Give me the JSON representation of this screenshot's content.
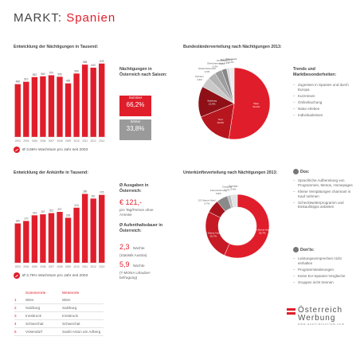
{
  "header": {
    "title_prefix": "MARKT:",
    "title_country": "Spanien"
  },
  "overnight": {
    "heading": "Entwicklung der Nächtigungen in Tausend:",
    "growth": "Ø 3,66% Wachstum pro Jahr seit 2003",
    "season_heading": "Nächtigungen in Österreich nach Saison:",
    "summer_label": "Sommer",
    "summer_value": "66,2%",
    "winter_label": "Winter",
    "winter_value": "33,8%",
    "summer_color": "#e01e2b",
    "winter_color": "#9a9a9a"
  },
  "arrivals": {
    "heading": "Entwicklung der Ankünfte in Tausend:",
    "growth": "Ø 3,75% Wachstum pro Jahr seit 2003"
  },
  "spending": {
    "heading": "Ø Ausgaben in Österreich:",
    "value": "€ 121,-",
    "note": "pro Tag/Person ohne Anreise"
  },
  "stay": {
    "heading": "Ø Aufenthaltsdauer in Österreich:",
    "value1": "2,3",
    "unit1": "Nächte",
    "source1": "(Statistik Austria)",
    "value2": "5,9",
    "unit2": "Nächte",
    "source2": "(T-MONA Urlauber-befragung)"
  },
  "regions": {
    "heading": "Bundesländerverteilung nach Nächtigungen 2013:"
  },
  "accommodation": {
    "heading": "Unterkünfteverteilung nach Nächtigungen 2013:"
  },
  "trends": {
    "heading": "Trends und Marktbesonderheiten:",
    "items": [
      "Zugreisen in Spanien und durch Europa",
      "Kurzreisen",
      "Onlinebuchung",
      "Natur erleben",
      "Individualreisen"
    ]
  },
  "dos": {
    "heading": "Dos:",
    "items": [
      "Sprachliche Aufbereitung von Programmen, Menüs, Homepages",
      "Kleine Verspätungen charmant in Kauf nehmen",
      "Schecktwetterprogramm und Einkaufstipps anbieten"
    ]
  },
  "donts": {
    "heading": "Don'ts:",
    "items": [
      "Leistungsversprechen nicht einhalten",
      "Programmänderungen",
      "Keine EU-Spanien-Vergleiche",
      "Gruppen nicht trennen"
    ]
  },
  "top_places": {
    "summer_header": "Sommerorte",
    "winter_header": "Winterorte",
    "rows": [
      {
        "n": "1",
        "summer": "Wien",
        "winter": "Wien"
      },
      {
        "n": "2",
        "summer": "Salzburg",
        "winter": "Salzburg"
      },
      {
        "n": "3",
        "summer": "Innsbruck",
        "winter": "Innsbruck"
      },
      {
        "n": "4",
        "summer": "Schwechat",
        "winter": "Schwechat"
      },
      {
        "n": "5",
        "summer": "Vösendorf",
        "winter": "Sankt Anton am Arlberg"
      }
    ]
  },
  "logo": {
    "line1": "Österreich",
    "line2": "Werbung",
    "url": "www.austriatourism.com",
    "flag_red": "#e01e2b"
  },
  "chart_data": [
    {
      "type": "bar",
      "title": "Entwicklung der Nächtigungen in Tausend:",
      "categories": [
        "2003",
        "2004",
        "2005",
        "2006",
        "2007",
        "2008",
        "2009",
        "2010",
        "2011",
        "2012",
        "2013"
      ],
      "values": [
        488,
        510,
        553,
        560,
        570,
        556,
        495,
        586,
        668,
        640,
        678
      ],
      "value_labels": [
        "488",
        "510",
        "553",
        "560",
        "570",
        "556",
        "495",
        "586",
        "668",
        "640",
        "678"
      ],
      "ylim": [
        0,
        750
      ],
      "color": "#e01e2b"
    },
    {
      "type": "bar",
      "title": "Entwicklung der Ankünfte in Tausend:",
      "categories": [
        "2003",
        "2004",
        "2005",
        "2006",
        "2007",
        "2008",
        "2009",
        "2010",
        "2011",
        "2012",
        "2013"
      ],
      "values": [
        160,
        170,
        193,
        197,
        202,
        207,
        183,
        224,
        280,
        261,
        276
      ],
      "value_labels": [
        "160",
        "170",
        "193",
        "197",
        "202",
        "207",
        "183",
        "224",
        "280",
        "261",
        "276"
      ],
      "ylim": [
        0,
        330
      ],
      "color": "#e01e2b"
    },
    {
      "type": "pie",
      "title": "Bundesländerverteilung nach Nächtigungen 2013:",
      "labels": [
        "Wien",
        "Tirol",
        "Salzburg",
        "Kärnten",
        "Niederösterreich",
        "Oberösterreich",
        "Vorarlberg",
        "Burgenland",
        "Steiermark"
      ],
      "values": [
        52.4,
        16.5,
        13.9,
        4.6,
        3.6,
        3.3,
        2.3,
        1.2,
        2.2
      ],
      "value_labels": [
        "52,4%",
        "16,5%",
        "13,9%",
        "4,6%",
        "3,6%",
        "3,3%",
        "2,3%",
        "1,2%",
        "2,2%"
      ],
      "colors": [
        "#e01e2b",
        "#b8161f",
        "#8e1016",
        "#c9c9c9",
        "#b3b3b3",
        "#9d9d9d",
        "#878787",
        "#dcdcdc",
        "#ececec"
      ]
    },
    {
      "type": "pie",
      "donut": true,
      "title": "Unterkünfteverteilung nach Nächtigungen 2013:",
      "labels": [
        "4/5 Sterne Hotel",
        "3 Sterne Hotel",
        "2/1 Sterne Hotel",
        "Ferienwohnung",
        "Camping",
        "Sonstige"
      ],
      "values": [
        56.7,
        25.7,
        6.7,
        5.8,
        1.7,
        3.4
      ],
      "value_labels": [
        "56,7%",
        "25,7%",
        "6,7%",
        "5,8%",
        "1,7%",
        "3,4%"
      ],
      "colors": [
        "#e01e2b",
        "#c61a25",
        "#a8141d",
        "#8a8a8a",
        "#bdbdbd",
        "#e2e2e2"
      ]
    }
  ]
}
